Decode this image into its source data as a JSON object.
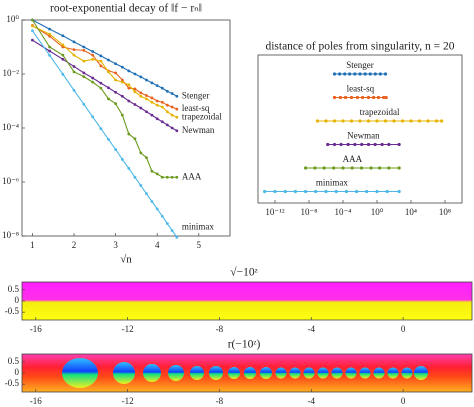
{
  "chart_data": [
    {
      "type": "line",
      "title": "root-exponential decay of ‖f − rₙ‖",
      "xlabel": "√n",
      "yscale": "log",
      "xlim": [
        0.75,
        5.75
      ],
      "xticks": [
        1,
        2,
        3,
        4,
        5
      ],
      "ylim": [
        1e-08,
        1
      ],
      "yticks": [
        {
          "value": 1,
          "label": "10⁰"
        },
        {
          "value": 0.01,
          "label": "10⁻²"
        },
        {
          "value": 0.0001,
          "label": "10⁻⁴"
        },
        {
          "value": 1e-06,
          "label": "10⁻⁶"
        },
        {
          "value": 1e-08,
          "label": "10⁻⁸"
        }
      ],
      "x": [
        1,
        1.414,
        1.732,
        2,
        2.236,
        2.449,
        2.646,
        2.828,
        3,
        3.162,
        3.317,
        3.464,
        3.606,
        3.742,
        3.873,
        4,
        4.123,
        4.243,
        4.359,
        4.472
      ],
      "series": [
        {
          "name": "Stenger",
          "color": "#1f6fb4",
          "values": [
            1,
            0.46,
            0.26,
            0.155,
            0.1,
            0.068,
            0.047,
            0.033,
            0.024,
            0.018,
            0.013,
            0.01,
            0.0078,
            0.006,
            0.0047,
            0.0037,
            0.003,
            0.0023,
            0.0019,
            0.0015
          ]
        },
        {
          "name": "least-sq",
          "color": "#e8601c",
          "values": [
            0.63,
            0.25,
            0.1,
            0.08,
            0.075,
            0.05,
            0.02,
            0.013,
            0.011,
            0.006,
            0.003,
            0.0028,
            0.002,
            0.0016,
            0.0013,
            0.001,
            0.0009,
            0.0007,
            0.0006,
            0.0005
          ]
        },
        {
          "name": "trapezoidal",
          "color": "#e6b400",
          "values": [
            0.6,
            0.3,
            0.12,
            0.05,
            0.03,
            0.035,
            0.03,
            0.012,
            0.006,
            0.005,
            0.004,
            0.0022,
            0.0015,
            0.0012,
            0.0009,
            0.0007,
            0.0006,
            0.0004,
            0.0003,
            0.00025
          ]
        },
        {
          "name": "Newman",
          "color": "#6a2c91",
          "values": [
            0.18,
            0.071,
            0.035,
            0.019,
            0.011,
            0.0071,
            0.0046,
            0.0031,
            0.0021,
            0.0015,
            0.001,
            0.00074,
            0.00055,
            0.0004,
            0.0003,
            0.00022,
            0.00017,
            0.00013,
            0.0001,
            7.9e-05
          ]
        },
        {
          "name": "AAA",
          "color": "#6b9a1f",
          "values": [
            1,
            0.1,
            0.05,
            0.012,
            0.008,
            0.005,
            0.003,
            0.0012,
            0.0008,
            0.0003,
            6e-05,
            4e-05,
            1.2e-05,
            8e-06,
            2.5e-06,
            2e-06,
            1.5e-06,
            1.5e-06,
            1.5e-06,
            1.5e-06
          ]
        },
        {
          "name": "minimax",
          "color": "#4db8e8",
          "values": [
            0.4,
            0.049,
            0.0098,
            0.0025,
            0.00076,
            0.00026,
            9.5e-05,
            3.8e-05,
            1.6e-05,
            6.9e-06,
            3.2e-06,
            1.5e-06,
            7.4e-07,
            3.7e-07,
            1.9e-07,
            1e-07,
            5.4e-08,
            2.9e-08,
            1.6e-08,
            9e-09
          ]
        }
      ]
    },
    {
      "type": "strip",
      "title": "distance of poles from singularity, n = 20",
      "xscale": "log",
      "xlim": [
        1e-14,
        10000000000.0
      ],
      "xticks": [
        {
          "value": 1e-12,
          "label": "10⁻¹²"
        },
        {
          "value": 1e-08,
          "label": "10⁻⁸"
        },
        {
          "value": 0.0001,
          "label": "10⁻⁴"
        },
        {
          "value": 1,
          "label": "10⁰"
        },
        {
          "value": 10000,
          "label": "10⁴"
        },
        {
          "value": 100000000,
          "label": "10⁸"
        }
      ],
      "series": [
        {
          "name": "Stenger",
          "color": "#1f6fb4",
          "values": [
            1e-05,
            4e-05,
            0.00016,
            0.0006,
            0.0025,
            0.01,
            0.04,
            0.16,
            0.63,
            2.5,
            10
          ]
        },
        {
          "name": "least-sq",
          "color": "#e8601c",
          "values": [
            1e-05,
            5e-05,
            0.0002,
            0.001,
            0.005,
            0.02,
            0.1,
            0.4,
            1.5,
            6,
            12
          ]
        },
        {
          "name": "trapezoidal",
          "color": "#e6b400",
          "values": [
            1e-07,
            1e-06,
            1e-05,
            0.0001,
            0.001,
            0.01,
            0.1,
            1,
            10,
            100,
            1000,
            10000,
            100000,
            1000000,
            10000000,
            40000000
          ]
        },
        {
          "name": "Newman",
          "color": "#6a2c91",
          "values": [
            1.6e-06,
            1e-05,
            6e-05,
            0.0004,
            0.0025,
            0.016,
            0.1,
            0.6,
            4,
            25,
            400
          ]
        },
        {
          "name": "AAA",
          "color": "#6b9a1f",
          "values": [
            4e-09,
            5e-08,
            6e-07,
            8e-06,
            0.0001,
            0.0012,
            0.015,
            0.2,
            2,
            25,
            400
          ]
        },
        {
          "name": "minimax",
          "color": "#4db8e8",
          "values": [
            6e-14,
            1e-12,
            1.6e-11,
            2.5e-10,
            4e-09,
            6e-08,
            1e-06,
            1.6e-05,
            0.00025,
            0.004,
            0.06,
            1,
            16,
            400
          ]
        }
      ]
    },
    {
      "type": "phase-portrait",
      "title": "√−10ᶻ",
      "xlim": [
        -16.6,
        3
      ],
      "xticks": [
        -16,
        -12,
        -8,
        -4,
        0
      ],
      "ylim": [
        -0.85,
        0.85
      ],
      "yticks": [
        0.5,
        0,
        -0.5
      ]
    },
    {
      "type": "phase-portrait",
      "title": "r(−10ᶻ)",
      "xlim": [
        -16.6,
        3
      ],
      "xticks": [
        -16,
        -12,
        -8,
        -4,
        0
      ],
      "ylim": [
        -0.85,
        0.85
      ],
      "yticks": [
        0.5,
        0,
        -0.5
      ]
    }
  ]
}
